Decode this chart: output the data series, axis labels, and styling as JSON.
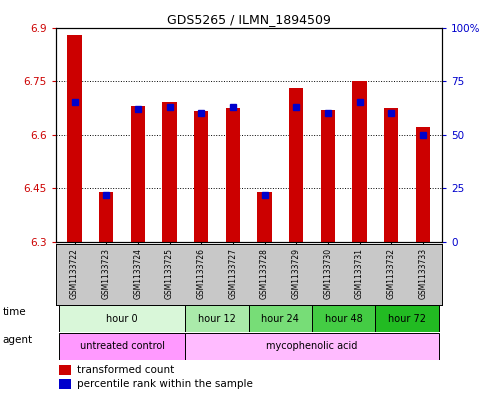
{
  "title": "GDS5265 / ILMN_1894509",
  "samples": [
    "GSM1133722",
    "GSM1133723",
    "GSM1133724",
    "GSM1133725",
    "GSM1133726",
    "GSM1133727",
    "GSM1133728",
    "GSM1133729",
    "GSM1133730",
    "GSM1133731",
    "GSM1133732",
    "GSM1133733"
  ],
  "transformed_count": [
    6.88,
    6.44,
    6.68,
    6.69,
    6.665,
    6.675,
    6.44,
    6.73,
    6.67,
    6.75,
    6.675,
    6.62
  ],
  "percentile_rank": [
    65,
    22,
    62,
    63,
    60,
    63,
    22,
    63,
    60,
    65,
    60,
    50
  ],
  "ylim_left": [
    6.3,
    6.9
  ],
  "ylim_right": [
    0,
    100
  ],
  "yticks_left": [
    6.3,
    6.45,
    6.6,
    6.75,
    6.9
  ],
  "yticks_right": [
    0,
    25,
    50,
    75,
    100
  ],
  "ytick_labels_left": [
    "6.3",
    "6.45",
    "6.6",
    "6.75",
    "6.9"
  ],
  "ytick_labels_right": [
    "0",
    "25",
    "50",
    "75",
    "100%"
  ],
  "bar_bottom": 6.3,
  "bar_color": "#cc0000",
  "dot_color": "#0000cc",
  "time_groups": [
    {
      "label": "hour 0",
      "start": 0,
      "end": 3,
      "color": "#d9f7d9"
    },
    {
      "label": "hour 12",
      "start": 4,
      "end": 5,
      "color": "#aaeaaa"
    },
    {
      "label": "hour 24",
      "start": 6,
      "end": 7,
      "color": "#77dd77"
    },
    {
      "label": "hour 48",
      "start": 8,
      "end": 9,
      "color": "#44cc44"
    },
    {
      "label": "hour 72",
      "start": 10,
      "end": 11,
      "color": "#22bb22"
    }
  ],
  "agent_untreated": {
    "label": "untreated control",
    "start": 0,
    "end": 3,
    "color": "#ff99ff"
  },
  "agent_myco": {
    "label": "mycophenolic acid",
    "start": 4,
    "end": 11,
    "color": "#ffbbff"
  },
  "background_color": "#ffffff",
  "sample_bg_color": "#c8c8c8",
  "bar_width": 0.45,
  "dot_size": 4
}
